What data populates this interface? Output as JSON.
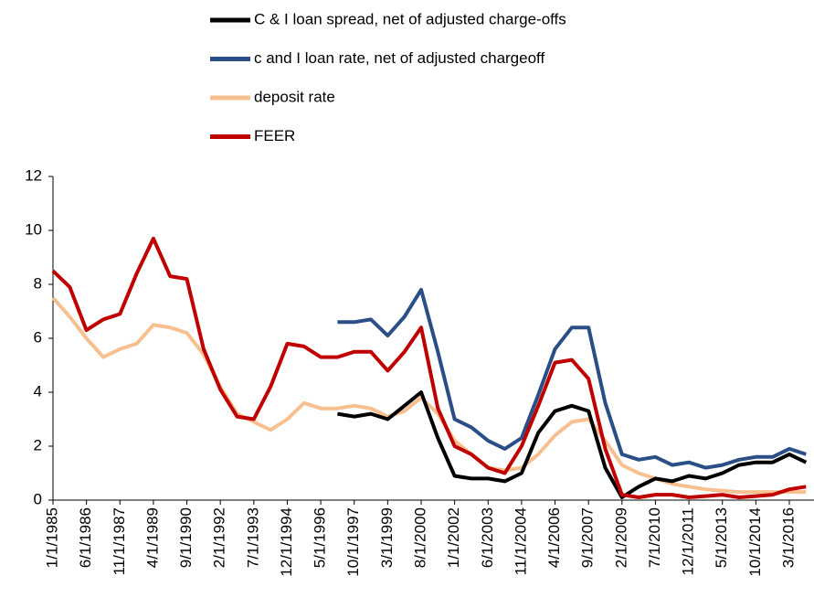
{
  "chart_data": {
    "type": "line",
    "categories": [
      "1/1/1985",
      null,
      "6/1/1986",
      null,
      "11/1/1987",
      null,
      "4/1/1989",
      null,
      "9/1/1990",
      null,
      "2/1/1992",
      null,
      "7/1/1993",
      null,
      "12/1/1994",
      null,
      "5/1/1996",
      null,
      "10/1/1997",
      null,
      "3/1/1999",
      null,
      "8/1/2000",
      null,
      "1/1/2002",
      null,
      "6/1/2003",
      null,
      "11/1/2004",
      null,
      "4/1/2006",
      null,
      "9/1/2007",
      null,
      "2/1/2009",
      null,
      "7/1/2010",
      null,
      "12/1/2011",
      null,
      "5/1/2013",
      null,
      "10/1/2014",
      null,
      "3/1/2016",
      null
    ],
    "series": [
      {
        "name": "C & I loan spread, net of adjusted charge-offs",
        "color": "#000000",
        "values": [
          null,
          null,
          null,
          null,
          null,
          null,
          null,
          null,
          null,
          null,
          null,
          null,
          null,
          null,
          null,
          null,
          null,
          3.2,
          3.1,
          3.2,
          3.0,
          3.5,
          4.0,
          2.3,
          0.9,
          0.8,
          0.8,
          0.7,
          1.0,
          2.5,
          3.3,
          3.5,
          3.3,
          1.2,
          0.1,
          0.5,
          0.8,
          0.7,
          0.9,
          0.8,
          1.0,
          1.3,
          1.4,
          1.4,
          1.7,
          1.4
        ]
      },
      {
        "name": "c and I loan rate, net of adjusted chargeoff",
        "color": "#2a4e86",
        "values": [
          null,
          null,
          null,
          null,
          null,
          null,
          null,
          null,
          null,
          null,
          null,
          null,
          null,
          null,
          null,
          null,
          null,
          6.6,
          6.6,
          6.7,
          6.1,
          6.8,
          7.8,
          5.5,
          3.0,
          2.7,
          2.2,
          1.9,
          2.3,
          3.9,
          5.6,
          6.4,
          6.4,
          3.6,
          1.7,
          1.5,
          1.6,
          1.3,
          1.4,
          1.2,
          1.3,
          1.5,
          1.6,
          1.6,
          1.9,
          1.7
        ]
      },
      {
        "name": "deposit rate",
        "color": "#f8c08f",
        "values": [
          7.5,
          6.8,
          6.0,
          5.3,
          5.6,
          5.8,
          6.5,
          6.4,
          6.2,
          5.4,
          4.2,
          3.2,
          2.9,
          2.6,
          3.0,
          3.6,
          3.4,
          3.4,
          3.5,
          3.4,
          3.1,
          3.3,
          3.8,
          3.2,
          2.2,
          1.7,
          1.2,
          1.1,
          1.2,
          1.7,
          2.4,
          2.9,
          3.0,
          2.2,
          1.3,
          1.0,
          0.8,
          0.6,
          0.5,
          0.4,
          0.35,
          0.3,
          0.3,
          0.3,
          0.3,
          0.3
        ]
      },
      {
        "name": "FEER",
        "color": "#c00000",
        "values": [
          8.5,
          7.9,
          6.3,
          6.7,
          6.9,
          8.4,
          9.7,
          8.3,
          8.2,
          5.6,
          4.1,
          3.1,
          3.0,
          4.2,
          5.8,
          5.7,
          5.3,
          5.3,
          5.5,
          5.5,
          4.8,
          5.5,
          6.4,
          3.4,
          2.0,
          1.7,
          1.2,
          1.0,
          2.0,
          3.5,
          5.1,
          5.2,
          4.5,
          1.9,
          0.2,
          0.1,
          0.2,
          0.2,
          0.1,
          0.15,
          0.2,
          0.1,
          0.15,
          0.2,
          0.4,
          0.5
        ]
      }
    ],
    "ylim": [
      0,
      12
    ],
    "yticks": [
      0,
      2,
      4,
      6,
      8,
      10,
      12
    ],
    "legend": "top"
  }
}
